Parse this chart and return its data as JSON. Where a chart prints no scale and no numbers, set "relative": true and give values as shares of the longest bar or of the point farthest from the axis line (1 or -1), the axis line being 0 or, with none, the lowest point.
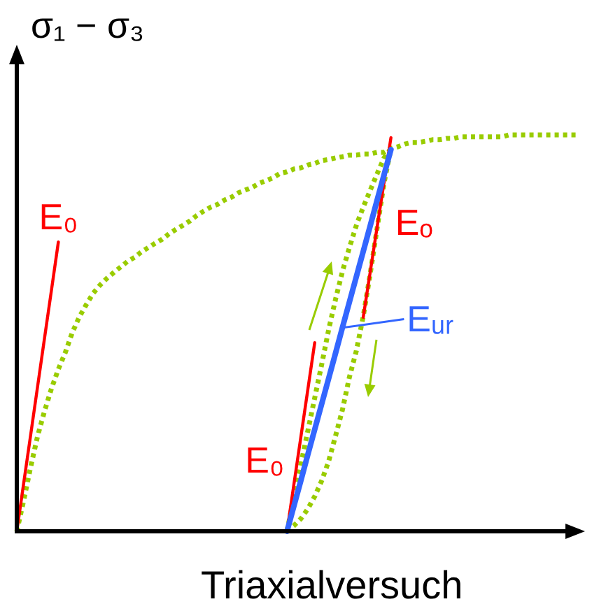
{
  "chart_data": {
    "type": "line",
    "relative": true,
    "xlabel": "Triaxialversuch",
    "ylabel": "σ₁ − σ₃",
    "marker": "none",
    "categories": [
      null,
      null,
      null,
      null,
      null,
      null,
      null,
      null,
      null,
      null,
      null,
      null,
      null,
      null,
      null,
      null,
      null,
      null,
      null,
      null,
      null,
      null,
      null,
      null,
      null,
      null,
      null,
      null,
      null,
      null,
      null,
      null,
      null,
      null,
      null,
      null,
      null,
      null,
      null,
      null,
      null,
      null,
      null,
      null,
      null,
      null,
      null,
      null,
      null,
      null,
      null,
      null,
      null,
      null,
      null,
      null,
      null,
      null,
      null,
      null,
      null,
      null,
      null,
      null,
      null,
      null,
      null,
      null,
      null,
      null,
      null,
      null,
      null,
      null,
      null,
      null,
      null,
      null,
      null,
      null,
      null,
      null
    ],
    "series": [
      {
        "color": "#99cc00",
        "line_style": "dotted",
        "values": [
          0,
          0.078,
          0.162,
          0.24,
          0.303,
          0.36,
          0.409,
          0.451,
          0.501,
          0.54,
          0.571,
          0.6,
          0.621,
          0.638,
          0.653,
          0.667,
          0.681,
          0.691,
          0.705,
          0.716,
          0.727,
          0.737,
          0.751,
          0.762,
          0.772,
          0.783,
          0.797,
          0.808,
          0.818,
          0.825,
          0.836,
          0.843,
          0.854,
          0.861,
          0.868,
          0.878,
          0.885,
          0.892,
          0.903,
          0.907,
          0.914,
          0.917,
          0.924,
          0.928,
          0.935,
          0.938,
          0.942,
          0.945,
          0.949,
          0.949,
          0.952,
          0.952,
          0.956,
          0.956,
          0.966,
          0.97,
          0.977,
          0.981,
          0.981,
          0.984,
          0.988,
          0.988,
          0.991,
          0.991,
          0.995,
          0.995,
          0.995,
          0.995,
          0.995,
          0.995,
          0.995,
          1,
          1,
          1,
          1,
          1,
          1,
          1,
          1,
          1,
          1,
          1
        ]
      },
      {
        "name": "E₀",
        "color": "#ff0000",
        "line_style": "solid",
        "values": [
          0,
          0.122,
          0.243,
          0.365,
          0.487,
          0.608,
          0.73,
          null,
          null,
          null,
          null,
          null,
          null,
          null,
          null,
          null,
          null,
          null,
          null,
          null,
          null,
          null,
          null,
          null,
          null,
          null,
          null,
          null,
          null,
          null,
          null,
          null,
          null,
          null,
          null,
          null,
          null,
          null,
          null,
          null,
          null,
          null,
          null,
          null,
          null,
          null,
          null,
          null,
          null,
          null,
          null,
          null,
          null,
          null,
          null,
          null,
          null,
          null,
          null,
          null,
          null,
          null,
          null,
          null,
          null,
          null,
          null,
          null,
          null,
          null,
          null,
          null,
          null,
          null,
          null,
          null,
          null,
          null,
          null,
          null,
          null,
          null
        ]
      },
      {
        "name": "E₀",
        "color": "#ff0000",
        "line_style": "solid",
        "values": [
          null,
          null,
          null,
          null,
          null,
          null,
          null,
          null,
          null,
          null,
          null,
          null,
          null,
          null,
          null,
          null,
          null,
          null,
          null,
          null,
          null,
          null,
          null,
          null,
          null,
          null,
          null,
          null,
          null,
          null,
          null,
          null,
          null,
          null,
          null,
          null,
          null,
          null,
          null,
          0,
          0.119,
          0.238,
          0.357,
          0.476,
          null,
          null,
          null,
          null,
          null,
          null,
          null,
          null,
          null,
          null,
          null,
          null,
          null,
          null,
          null,
          null,
          null,
          null,
          null,
          null,
          null,
          null,
          null,
          null,
          null,
          null,
          null,
          null,
          null,
          null,
          null,
          null,
          null,
          null,
          null,
          null,
          null,
          null
        ]
      },
      {
        "name": "Eₒ",
        "color": "#ff0000",
        "line_style": "solid",
        "values": [
          null,
          null,
          null,
          null,
          null,
          null,
          null,
          null,
          null,
          null,
          null,
          null,
          null,
          null,
          null,
          null,
          null,
          null,
          null,
          null,
          null,
          null,
          null,
          null,
          null,
          null,
          null,
          null,
          null,
          null,
          null,
          null,
          null,
          null,
          null,
          null,
          null,
          null,
          null,
          null,
          null,
          null,
          null,
          null,
          null,
          null,
          null,
          null,
          null,
          null,
          0.54,
          0.653,
          0.767,
          0.88,
          0.993,
          null,
          null,
          null,
          null,
          null,
          null,
          null,
          null,
          null,
          null,
          null,
          null,
          null,
          null,
          null,
          null,
          null,
          null,
          null,
          null,
          null,
          null,
          null,
          null,
          null,
          null,
          null
        ]
      },
      {
        "name": "Eᵤᵣ",
        "color": "#3366ff",
        "line_style": "solid",
        "values": [
          null,
          null,
          null,
          null,
          null,
          null,
          null,
          null,
          null,
          null,
          null,
          null,
          null,
          null,
          null,
          null,
          null,
          null,
          null,
          null,
          null,
          null,
          null,
          null,
          null,
          null,
          null,
          null,
          null,
          null,
          null,
          null,
          null,
          null,
          null,
          null,
          null,
          null,
          null,
          0,
          0.064,
          0.128,
          0.193,
          0.257,
          0.321,
          0.385,
          0.449,
          0.514,
          0.578,
          0.642,
          0.706,
          0.77,
          0.835,
          0.899,
          0.963,
          null,
          null,
          null,
          null,
          null,
          null,
          null,
          null,
          null,
          null,
          null,
          null,
          null,
          null,
          null,
          null,
          null,
          null,
          null,
          null,
          null,
          null,
          null,
          null,
          null,
          null,
          null
        ]
      }
    ]
  }
}
